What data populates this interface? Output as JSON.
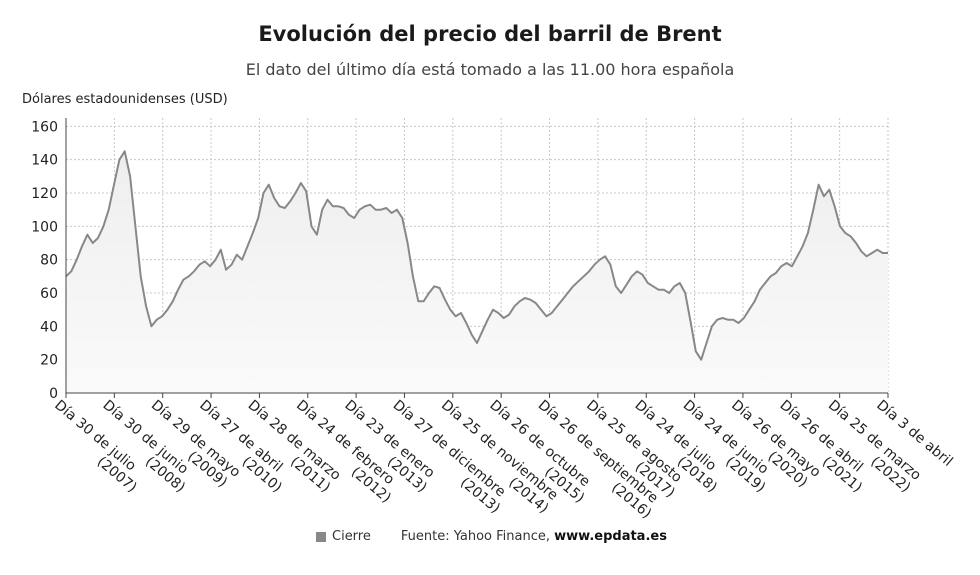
{
  "title": "Evolución del precio del barril de Brent",
  "subtitle": "El dato del último día está tomado a las 11.00 hora española",
  "colors": {
    "line": "#888888",
    "area": "#eeeeee",
    "grid": "#c8c8c8",
    "axis": "#444444"
  },
  "legend": {
    "series_label": "Cierre",
    "source_prefix": "Fuente: Yahoo Finance, ",
    "source_site": "www.epdata.es"
  },
  "chart_data": {
    "type": "area",
    "ylabel": "Dólares estadounidenses (USD)",
    "ylim": [
      0,
      165
    ],
    "yticks": [
      0,
      20,
      40,
      60,
      80,
      100,
      120,
      140,
      160
    ],
    "grid": true,
    "legend_position": "bottom",
    "x_ticks": [
      {
        "line1": "Día 30 de julio",
        "line2": "(2007)"
      },
      {
        "line1": "Día 30 de junio",
        "line2": "(2008)"
      },
      {
        "line1": "Día 29 de mayo",
        "line2": "(2009)"
      },
      {
        "line1": "Día 27 de abril",
        "line2": "(2010)"
      },
      {
        "line1": "Día 28 de marzo",
        "line2": "(2011)"
      },
      {
        "line1": "Día 24 de febrero",
        "line2": "(2012)"
      },
      {
        "line1": "Día 23 de enero",
        "line2": "(2013)"
      },
      {
        "line1": "Día 27 de diciembre",
        "line2": "(2013)"
      },
      {
        "line1": "Día 25 de noviembre",
        "line2": "(2014)"
      },
      {
        "line1": "Día 26 de octubre",
        "line2": "(2015)"
      },
      {
        "line1": "Día 26 de septiembre",
        "line2": "(2016)"
      },
      {
        "line1": "Día 25 de agosto",
        "line2": "(2017)"
      },
      {
        "line1": "Día 24 de julio",
        "line2": "(2018)"
      },
      {
        "line1": "Día 24 de junio",
        "line2": "(2019)"
      },
      {
        "line1": "Día 26 de mayo",
        "line2": "(2020)"
      },
      {
        "line1": "Día 26 de abril",
        "line2": "(2021)"
      },
      {
        "line1": "Día 25 de marzo",
        "line2": "(2022)"
      },
      {
        "line1": "Día 3 de abril",
        "line2": ""
      }
    ],
    "series": [
      {
        "name": "Cierre",
        "values": [
          70,
          73,
          80,
          88,
          95,
          90,
          93,
          100,
          110,
          125,
          140,
          145,
          130,
          100,
          70,
          52,
          40,
          44,
          46,
          50,
          55,
          62,
          68,
          70,
          73,
          77,
          79,
          76,
          80,
          86,
          74,
          77,
          83,
          80,
          88,
          96,
          105,
          120,
          125,
          117,
          112,
          111,
          115,
          120,
          126,
          121,
          100,
          95,
          110,
          116,
          112,
          112,
          111,
          107,
          105,
          110,
          112,
          113,
          110,
          110,
          111,
          108,
          110,
          105,
          90,
          70,
          55,
          55,
          60,
          64,
          63,
          56,
          50,
          46,
          48,
          42,
          35,
          30,
          37,
          44,
          50,
          48,
          45,
          47,
          52,
          55,
          57,
          56,
          54,
          50,
          46,
          48,
          52,
          56,
          60,
          64,
          67,
          70,
          73,
          77,
          80,
          82,
          77,
          64,
          60,
          65,
          70,
          73,
          71,
          66,
          64,
          62,
          62,
          60,
          64,
          66,
          60,
          43,
          25,
          20,
          30,
          40,
          44,
          45,
          44,
          44,
          42,
          45,
          50,
          55,
          62,
          66,
          70,
          72,
          76,
          78,
          76,
          82,
          88,
          96,
          110,
          125,
          118,
          122,
          112,
          100,
          96,
          94,
          90,
          85,
          82,
          84,
          86,
          84,
          84
        ]
      }
    ]
  }
}
